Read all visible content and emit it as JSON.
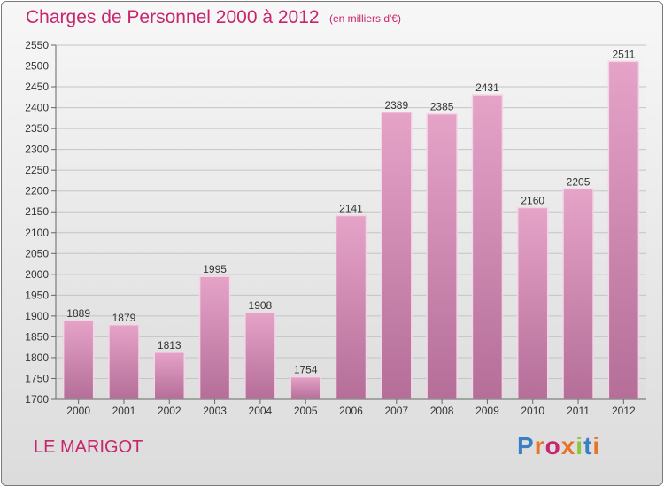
{
  "header": {
    "title": "Charges de Personnel 2000 à 2012",
    "subtitle": "(en milliers d'€)"
  },
  "footer": {
    "commune": "LE MARIGOT",
    "logo": "Proxiti",
    "logo_colors": [
      "#3a7fc1",
      "#e8742a",
      "#c8256e",
      "#e8742a",
      "#8cc63f",
      "#3a7fc1",
      "#e8742a"
    ]
  },
  "colors": {
    "bar_top": "#e6a3c8",
    "bar_bottom": "#b46e98",
    "text_accent": "#c8256e"
  },
  "chart_data": {
    "type": "bar",
    "categories": [
      "2000",
      "2001",
      "2002",
      "2003",
      "2004",
      "2005",
      "2006",
      "2007",
      "2008",
      "2009",
      "2010",
      "2011",
      "2012"
    ],
    "values": [
      1889,
      1879,
      1813,
      1995,
      1908,
      1754,
      2141,
      2389,
      2385,
      2431,
      2160,
      2205,
      2511
    ],
    "ylim": [
      1700,
      2550
    ],
    "yticks": [
      1700,
      1750,
      1800,
      1850,
      1900,
      1950,
      2000,
      2050,
      2100,
      2150,
      2200,
      2250,
      2300,
      2350,
      2400,
      2450,
      2500,
      2550
    ],
    "grid": true,
    "data_labels": true
  }
}
